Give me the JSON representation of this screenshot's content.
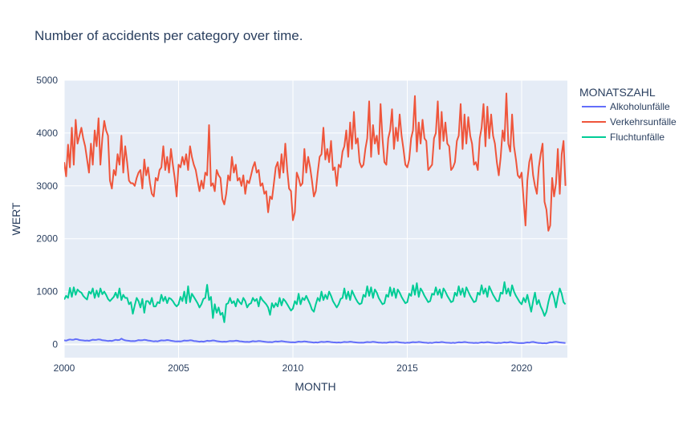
{
  "chart_data": {
    "type": "line",
    "title": "Number of accidents per category over time.",
    "xlabel": "MONTH",
    "ylabel": "WERT",
    "xlim": [
      2000,
      2022
    ],
    "ylim": [
      -250,
      5000
    ],
    "x_ticks": [
      "2000",
      "2005",
      "2010",
      "2015",
      "2020"
    ],
    "y_ticks": [
      "0",
      "1000",
      "2000",
      "3000",
      "4000",
      "5000"
    ],
    "x_tick_values": [
      2000,
      2005,
      2010,
      2015,
      2020
    ],
    "y_tick_values": [
      0,
      1000,
      2000,
      3000,
      4000,
      5000
    ],
    "grid": true,
    "legend_title": "MONATSZAHL",
    "legend_position": "right",
    "years": [
      2000,
      2001,
      2002,
      2003,
      2004,
      2005,
      2006,
      2007,
      2008,
      2009,
      2010,
      2011,
      2012,
      2013,
      2014,
      2015,
      2016,
      2017,
      2018,
      2019,
      2020,
      2021
    ],
    "series": [
      {
        "name": "Alkoholunfälle",
        "color": "#636efa",
        "yearly_monthly": [
          [
            78,
            72,
            85,
            95,
            88,
            90,
            102,
            96,
            84,
            80,
            76,
            70
          ],
          [
            74,
            68,
            80,
            90,
            85,
            88,
            96,
            92,
            80,
            76,
            72,
            66
          ],
          [
            70,
            66,
            78,
            88,
            82,
            86,
            110,
            90,
            78,
            72,
            68,
            62
          ],
          [
            66,
            62,
            72,
            82,
            78,
            80,
            88,
            84,
            74,
            70,
            64,
            58
          ],
          [
            62,
            58,
            68,
            78,
            74,
            76,
            84,
            80,
            70,
            66,
            60,
            56
          ],
          [
            60,
            56,
            64,
            74,
            70,
            72,
            80,
            76,
            66,
            62,
            58,
            52
          ],
          [
            56,
            52,
            60,
            70,
            66,
            68,
            76,
            72,
            62,
            58,
            54,
            50
          ],
          [
            54,
            50,
            58,
            66,
            62,
            64,
            72,
            68,
            60,
            56,
            52,
            48
          ],
          [
            50,
            46,
            54,
            62,
            58,
            60,
            66,
            62,
            56,
            52,
            48,
            44
          ],
          [
            46,
            42,
            50,
            58,
            54,
            56,
            62,
            58,
            52,
            48,
            44,
            40
          ],
          [
            42,
            38,
            46,
            54,
            50,
            52,
            58,
            54,
            48,
            44,
            40,
            36
          ],
          [
            40,
            36,
            44,
            50,
            46,
            48,
            54,
            50,
            44,
            40,
            38,
            34
          ],
          [
            38,
            34,
            42,
            48,
            44,
            46,
            52,
            48,
            42,
            38,
            36,
            32
          ],
          [
            36,
            32,
            40,
            46,
            42,
            44,
            50,
            46,
            40,
            36,
            34,
            30
          ],
          [
            34,
            30,
            38,
            44,
            40,
            42,
            48,
            44,
            38,
            34,
            32,
            28
          ],
          [
            34,
            30,
            38,
            44,
            40,
            42,
            48,
            44,
            38,
            34,
            32,
            28
          ],
          [
            32,
            28,
            36,
            42,
            38,
            40,
            46,
            42,
            36,
            32,
            30,
            26
          ],
          [
            32,
            28,
            36,
            42,
            38,
            40,
            46,
            42,
            36,
            32,
            30,
            26
          ],
          [
            30,
            26,
            34,
            40,
            36,
            38,
            44,
            40,
            34,
            30,
            28,
            24
          ],
          [
            30,
            26,
            34,
            40,
            36,
            38,
            46,
            40,
            34,
            30,
            28,
            24
          ],
          [
            28,
            24,
            32,
            38,
            34,
            44,
            48,
            40,
            32,
            28,
            26,
            22
          ],
          [
            24,
            20,
            30,
            40,
            38,
            46,
            50,
            44,
            38,
            34,
            30,
            26
          ]
        ]
      },
      {
        "name": "Verkehrsunfälle",
        "color": "#ef553b",
        "yearly_monthly": [
          [
            3450,
            3180,
            3780,
            3350,
            4100,
            3400,
            4250,
            3800,
            3950,
            4100,
            3900,
            3750
          ],
          [
            3500,
            3250,
            3800,
            3400,
            4050,
            3750,
            4280,
            3400,
            3900,
            4230,
            4050,
            3950
          ],
          [
            3100,
            2950,
            3300,
            3200,
            3600,
            3400,
            3950,
            3250,
            3750,
            3450,
            3100,
            3050
          ],
          [
            3050,
            3000,
            3150,
            3250,
            3300,
            2950,
            3500,
            3200,
            3350,
            3050,
            2850,
            2800
          ],
          [
            3150,
            3100,
            3300,
            3350,
            3750,
            3300,
            3550,
            3250,
            3700,
            3400,
            3150,
            2800
          ],
          [
            3400,
            3350,
            3550,
            3400,
            3600,
            3300,
            3750,
            3550,
            3400,
            3300,
            3100,
            2900
          ],
          [
            3100,
            2950,
            3250,
            3200,
            4150,
            3000,
            3050,
            2900,
            3300,
            3200,
            3150,
            2750
          ],
          [
            2650,
            2850,
            3200,
            3100,
            3550,
            3250,
            3400,
            3100,
            3150,
            3000,
            3200,
            2850
          ],
          [
            3100,
            3050,
            3200,
            3350,
            3450,
            3250,
            3300,
            3000,
            3050,
            2850,
            2900,
            2500
          ],
          [
            2800,
            2750,
            3050,
            3350,
            3450,
            3150,
            3600,
            3250,
            3800,
            3300,
            2950,
            2900
          ],
          [
            2350,
            2500,
            3250,
            3150,
            3000,
            3050,
            3700,
            3250,
            3550,
            3350,
            3100,
            2800
          ],
          [
            2900,
            3250,
            3550,
            3600,
            4100,
            3500,
            3700,
            3450,
            3850,
            3300,
            3350,
            3000
          ],
          [
            3400,
            3350,
            3650,
            3750,
            4050,
            3550,
            4200,
            3700,
            4400,
            3800,
            3900,
            3450
          ],
          [
            3350,
            3400,
            3700,
            3900,
            4600,
            3550,
            4150,
            3800,
            3950,
            3600,
            4550,
            3900
          ],
          [
            3450,
            3400,
            3900,
            4050,
            4450,
            3700,
            4100,
            3850,
            4350,
            3950,
            3700,
            3400
          ],
          [
            3350,
            3500,
            3900,
            4050,
            4700,
            3650,
            4200,
            3800,
            4250,
            3900,
            3850,
            3300
          ],
          [
            3350,
            3400,
            3900,
            4000,
            4600,
            3700,
            4400,
            3850,
            4200,
            3800,
            3750,
            3300
          ],
          [
            3350,
            3450,
            3850,
            3950,
            4550,
            3700,
            4350,
            3800,
            4300,
            3950,
            3800,
            3400
          ],
          [
            3450,
            3300,
            3900,
            4100,
            4550,
            3750,
            4500,
            3900,
            4350,
            3950,
            3800,
            3450
          ],
          [
            3200,
            3550,
            4050,
            3850,
            4750,
            3800,
            3650,
            4350,
            3750,
            3500,
            3200,
            3150
          ],
          [
            3250,
            2750,
            2250,
            3100,
            3450,
            3600,
            3200,
            3000,
            2850,
            3350,
            3600,
            3800
          ],
          [
            2700,
            2550,
            2150,
            2250,
            3150,
            2800,
            3050,
            3700,
            2850,
            3600,
            3850,
            3000
          ]
        ]
      },
      {
        "name": "Fluchtunfälle",
        "color": "#00cc96",
        "yearly_monthly": [
          [
            850,
            920,
            880,
            1070,
            900,
            1080,
            940,
            1040,
            1000,
            980,
            920,
            880
          ],
          [
            850,
            1000,
            960,
            1060,
            880,
            1020,
            900,
            1060,
            950,
            1000,
            940,
            860
          ],
          [
            820,
            860,
            900,
            980,
            880,
            1060,
            840,
            940,
            880,
            880,
            760,
            800
          ],
          [
            580,
            740,
            880,
            820,
            700,
            860,
            600,
            820,
            820,
            760,
            880,
            720
          ],
          [
            720,
            800,
            780,
            940,
            820,
            900,
            780,
            880,
            860,
            820,
            760,
            720
          ],
          [
            760,
            900,
            820,
            1000,
            780,
            1100,
            800,
            960,
            900,
            840,
            780,
            700
          ],
          [
            760,
            860,
            880,
            1130,
            840,
            900,
            500,
            760,
            600,
            700,
            560,
            600
          ],
          [
            420,
            760,
            780,
            880,
            780,
            820,
            720,
            860,
            800,
            760,
            880,
            820
          ],
          [
            700,
            760,
            780,
            880,
            820,
            860,
            720,
            900,
            840,
            800,
            760,
            700
          ],
          [
            560,
            780,
            700,
            780,
            720,
            880,
            740,
            860,
            820,
            760,
            700,
            640
          ],
          [
            680,
            820,
            760,
            960,
            760,
            880,
            840,
            920,
            840,
            760,
            660,
            620
          ],
          [
            760,
            880,
            820,
            1000,
            840,
            940,
            860,
            1000,
            920,
            820,
            760,
            700
          ],
          [
            760,
            860,
            880,
            1060,
            860,
            1000,
            840,
            1020,
            940,
            860,
            800,
            760
          ],
          [
            780,
            940,
            900,
            1100,
            920,
            1080,
            880,
            1040,
            980,
            880,
            820,
            760
          ],
          [
            780,
            940,
            900,
            1080,
            920,
            1060,
            880,
            1040,
            980,
            900,
            840,
            780
          ],
          [
            800,
            960,
            920,
            1120,
            940,
            1160,
            900,
            1060,
            1000,
            920,
            860,
            800
          ],
          [
            820,
            960,
            940,
            1080,
            940,
            1040,
            880,
            1060,
            1000,
            920,
            860,
            800
          ],
          [
            820,
            980,
            920,
            1100,
            940,
            1060,
            900,
            1080,
            1000,
            920,
            860,
            800
          ],
          [
            820,
            980,
            940,
            1120,
            960,
            1060,
            900,
            1100,
            1020,
            940,
            880,
            820
          ],
          [
            820,
            980,
            960,
            1180,
            960,
            1060,
            920,
            1120,
            1000,
            920,
            860,
            800
          ],
          [
            760,
            880,
            800,
            940,
            780,
            620,
            820,
            980,
            760,
            840,
            720,
            640
          ],
          [
            540,
            620,
            800,
            940,
            1000,
            880,
            700,
            900,
            1060,
            960,
            800,
            760
          ]
        ]
      }
    ]
  }
}
